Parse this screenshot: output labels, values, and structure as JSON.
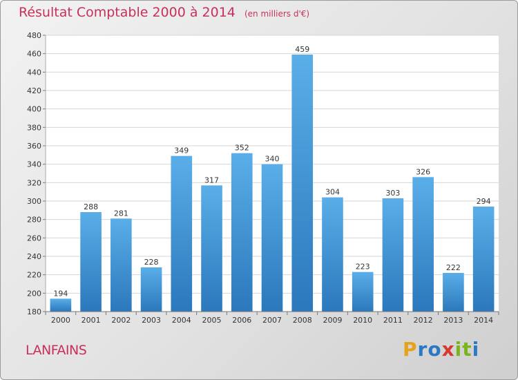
{
  "header": {
    "title": "Résultat Comptable 2000 à 2014",
    "subtitle": "(en milliers d'€)"
  },
  "footer": {
    "commune": "LANFAINS",
    "logo_letters": [
      "P",
      "r",
      "o",
      "x",
      "i",
      "t",
      "i"
    ],
    "logo_colors": [
      "#e6a21a",
      "#2a78c6",
      "#2a78c6",
      "#d8382e",
      "#7ab51d",
      "#7ab51d",
      "#2a78c6"
    ]
  },
  "chart_data": {
    "type": "bar",
    "title": "Résultat Comptable 2000 à 2014",
    "subtitle": "(en milliers d'€)",
    "xlabel": "",
    "ylabel": "",
    "categories": [
      "2000",
      "2001",
      "2002",
      "2003",
      "2004",
      "2005",
      "2006",
      "2007",
      "2008",
      "2009",
      "2010",
      "2011",
      "2012",
      "2013",
      "2014"
    ],
    "values": [
      194,
      288,
      281,
      228,
      349,
      317,
      352,
      340,
      459,
      304,
      223,
      303,
      326,
      222,
      294
    ],
    "ylim": [
      180,
      480
    ],
    "yticks": [
      180,
      200,
      220,
      240,
      260,
      280,
      300,
      320,
      340,
      360,
      380,
      400,
      420,
      440,
      460,
      480
    ],
    "grid": true,
    "bar_color": "#3a8fd6",
    "bar_color_light": "#5aaee8",
    "bar_color_dark": "#2b78bc"
  }
}
